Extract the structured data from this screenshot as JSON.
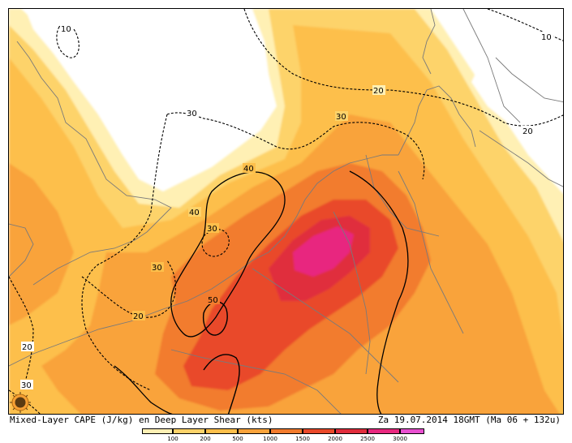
{
  "caption": {
    "left": "Mixed-Layer CAPE (J/kg) en Deep Layer Shear (kts)",
    "right": "Za 19.07.2014 18GMT (Ma 06 + 132u)"
  },
  "legend": {
    "thresholds": [
      "100",
      "200",
      "500",
      "1000",
      "1500",
      "2000",
      "2500",
      "3000"
    ],
    "colors": [
      "#fff0b4",
      "#fdd36a",
      "#fdbf4b",
      "#f9a33b",
      "#f27b2d",
      "#e9492a",
      "#e02d3c",
      "#e8287f",
      "#e84fd0"
    ]
  },
  "colors": {
    "background": "#ffffff",
    "coastline": "#7a7a7a",
    "contour": "#000000"
  },
  "contour_labels": [
    "10",
    "10",
    "20",
    "20",
    "20",
    "20",
    "30",
    "30",
    "30",
    "30",
    "30",
    "40",
    "40",
    "50"
  ]
}
